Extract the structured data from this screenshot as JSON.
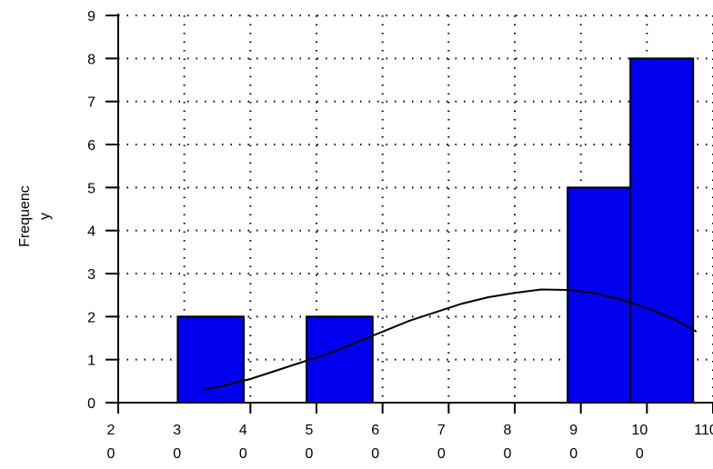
{
  "chart_data": {
    "type": "bar",
    "title": "",
    "xlabel": "",
    "ylabel_lines": [
      "Frequenc",
      "y"
    ],
    "x_ticks": [
      {
        "value": 20,
        "lines": [
          "2",
          "0"
        ]
      },
      {
        "value": 40,
        "lines": [
          "4",
          "0"
        ]
      },
      {
        "value": 50,
        "lines": [
          "5",
          "0"
        ]
      },
      {
        "value": 60,
        "lines": [
          "6",
          "0"
        ]
      },
      {
        "value": 70,
        "lines": [
          "7",
          "0"
        ]
      },
      {
        "value": 80,
        "lines": [
          "8",
          "0"
        ]
      },
      {
        "value": 90,
        "lines": [
          "9",
          "0"
        ]
      },
      {
        "value": 100,
        "lines": [
          "10",
          "0"
        ]
      },
      {
        "value": 110,
        "lines": [
          "110",
          ""
        ]
      }
    ],
    "x_tick_extra": {
      "value": 30,
      "lines": [
        "3",
        "0"
      ]
    },
    "y_ticks": [
      0,
      1,
      2,
      3,
      4,
      5,
      6,
      7,
      8,
      9
    ],
    "xlim": [
      20,
      110
    ],
    "ylim": [
      0,
      9
    ],
    "grid": true,
    "bars": [
      {
        "x0": 29,
        "x1": 39,
        "value": 2
      },
      {
        "x0": 48.5,
        "x1": 58.5,
        "value": 2
      },
      {
        "x0": 88,
        "x1": 97.5,
        "value": 5
      },
      {
        "x0": 97.5,
        "x1": 107,
        "value": 8
      }
    ],
    "bar_color": "#0000ee",
    "curve": {
      "x": [
        33,
        36,
        40,
        44,
        48,
        52,
        56,
        60,
        64,
        68,
        72,
        76,
        80,
        84,
        88,
        92,
        96,
        100,
        104,
        107.5
      ],
      "y": [
        0.3,
        0.4,
        0.55,
        0.75,
        0.95,
        1.15,
        1.4,
        1.65,
        1.9,
        2.1,
        2.3,
        2.45,
        2.55,
        2.63,
        2.62,
        2.55,
        2.4,
        2.2,
        1.95,
        1.65
      ]
    }
  }
}
